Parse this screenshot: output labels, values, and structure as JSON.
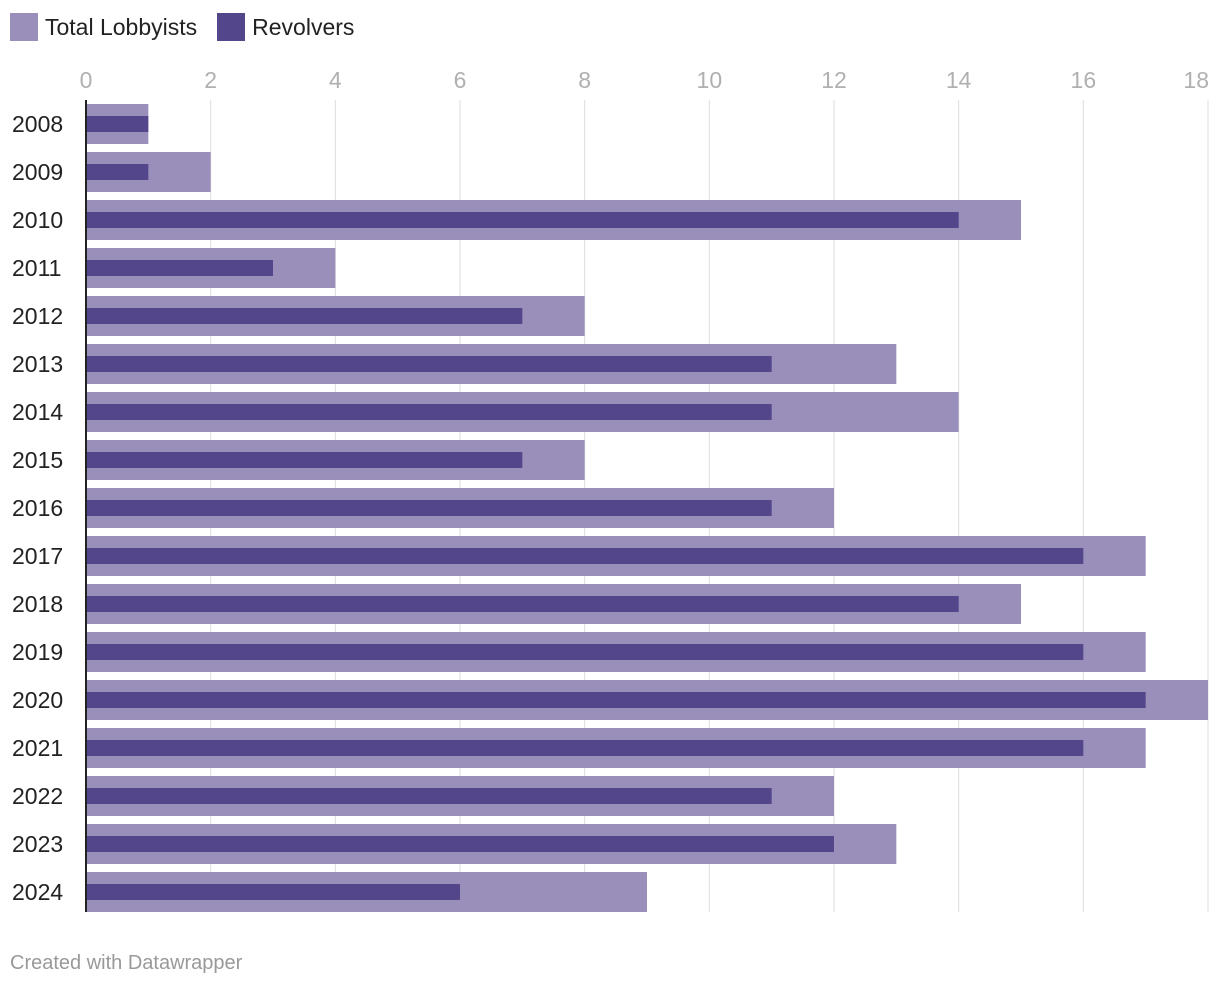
{
  "legend": {
    "items": [
      {
        "label": "Total Lobbyists",
        "color": "#9a8fbb"
      },
      {
        "label": "Revolvers",
        "color": "#53468a"
      }
    ]
  },
  "footer": {
    "credit": "Created with Datawrapper"
  },
  "chart_data": {
    "type": "bar",
    "orientation": "horizontal",
    "overlapping_bars": true,
    "categories": [
      "2008",
      "2009",
      "2010",
      "2011",
      "2012",
      "2013",
      "2014",
      "2015",
      "2016",
      "2017",
      "2018",
      "2019",
      "2020",
      "2021",
      "2022",
      "2023",
      "2024"
    ],
    "series": [
      {
        "name": "Total Lobbyists",
        "color": "#9a8fbb",
        "values": [
          1,
          2,
          15,
          4,
          8,
          13,
          14,
          8,
          12,
          17,
          15,
          17,
          18,
          17,
          12,
          13,
          9
        ]
      },
      {
        "name": "Revolvers",
        "color": "#53468a",
        "values": [
          1,
          1,
          14,
          3,
          7,
          11,
          11,
          7,
          11,
          16,
          14,
          16,
          17,
          16,
          11,
          12,
          6
        ]
      }
    ],
    "x_ticks": [
      0,
      2,
      4,
      6,
      8,
      10,
      12,
      14,
      16,
      18
    ],
    "xlim": [
      0,
      18
    ],
    "grid": true,
    "axis_position": "top",
    "legend_position": "top-left"
  }
}
